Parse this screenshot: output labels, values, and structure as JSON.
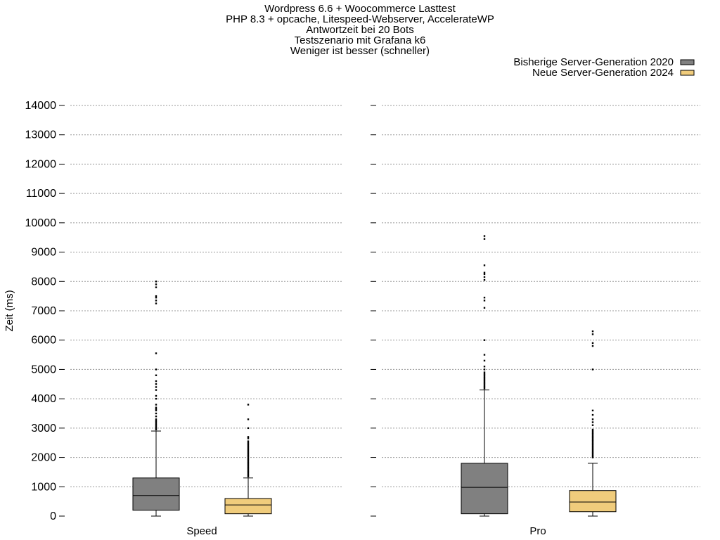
{
  "chart_data": {
    "type": "boxplot",
    "title_lines": [
      "Wordpress 6.6 + Woocommerce Lasttest",
      "PHP 8.3 + opcache, Litespeed-Webserver, AccelerateWP",
      "Antwortzeit bei 20 Bots",
      "Testszenario mit Grafana k6",
      "Weniger ist besser (schneller)"
    ],
    "ylabel": "Zeit (ms)",
    "ylim": [
      0,
      14000
    ],
    "yticks": [
      0,
      1000,
      2000,
      3000,
      4000,
      5000,
      6000,
      7000,
      8000,
      9000,
      10000,
      11000,
      12000,
      13000,
      14000
    ],
    "grid": true,
    "legend_position": "top-right",
    "series": [
      {
        "name": "Bisherige Server-Generation 2020",
        "color": "#808080"
      },
      {
        "name": "Neue Server-Generation 2024",
        "color": "#f0cc7c"
      }
    ],
    "groups": [
      {
        "label": "Speed",
        "boxes": [
          {
            "series": 0,
            "min": 0,
            "q1": 200,
            "median": 700,
            "q3": 1300,
            "max": 2900,
            "outliers": [
              2950,
              3000,
              3050,
              3100,
              3150,
              3200,
              3250,
              3300,
              3400,
              3500,
              3600,
              3650,
              3700,
              3800,
              4000,
              4100,
              4300,
              4400,
              4500,
              4600,
              4800,
              5000,
              5550,
              7250,
              7350,
              7450,
              7500,
              7800,
              7900,
              8000
            ]
          },
          {
            "series": 1,
            "min": 0,
            "q1": 80,
            "median": 380,
            "q3": 600,
            "max": 1300,
            "outliers": [
              1350,
              1400,
              1450,
              1500,
              1550,
              1600,
              1650,
              1700,
              1750,
              1800,
              1850,
              1900,
              1950,
              2000,
              2050,
              2100,
              2150,
              2200,
              2250,
              2300,
              2350,
              2400,
              2450,
              2500,
              2550,
              2650,
              2700,
              3000,
              3300,
              3800
            ]
          }
        ]
      },
      {
        "label": "Pro",
        "boxes": [
          {
            "series": 0,
            "min": 0,
            "q1": 80,
            "median": 980,
            "q3": 1800,
            "max": 4300,
            "outliers": [
              4350,
              4400,
              4450,
              4500,
              4550,
              4600,
              4650,
              4700,
              4750,
              4800,
              4850,
              4900,
              5000,
              5100,
              5300,
              5500,
              6000,
              7100,
              7350,
              7450,
              8050,
              8150,
              8250,
              8300,
              8550,
              9450,
              9550
            ]
          },
          {
            "series": 1,
            "min": 0,
            "q1": 150,
            "median": 480,
            "q3": 870,
            "max": 1800,
            "outliers": [
              2000,
              2050,
              2100,
              2150,
              2200,
              2250,
              2300,
              2350,
              2400,
              2450,
              2500,
              2550,
              2600,
              2650,
              2700,
              2750,
              2800,
              2850,
              2900,
              2950,
              3100,
              3200,
              3300,
              3450,
              3600,
              5000,
              5800,
              5900,
              6200,
              6300
            ]
          }
        ]
      }
    ]
  }
}
